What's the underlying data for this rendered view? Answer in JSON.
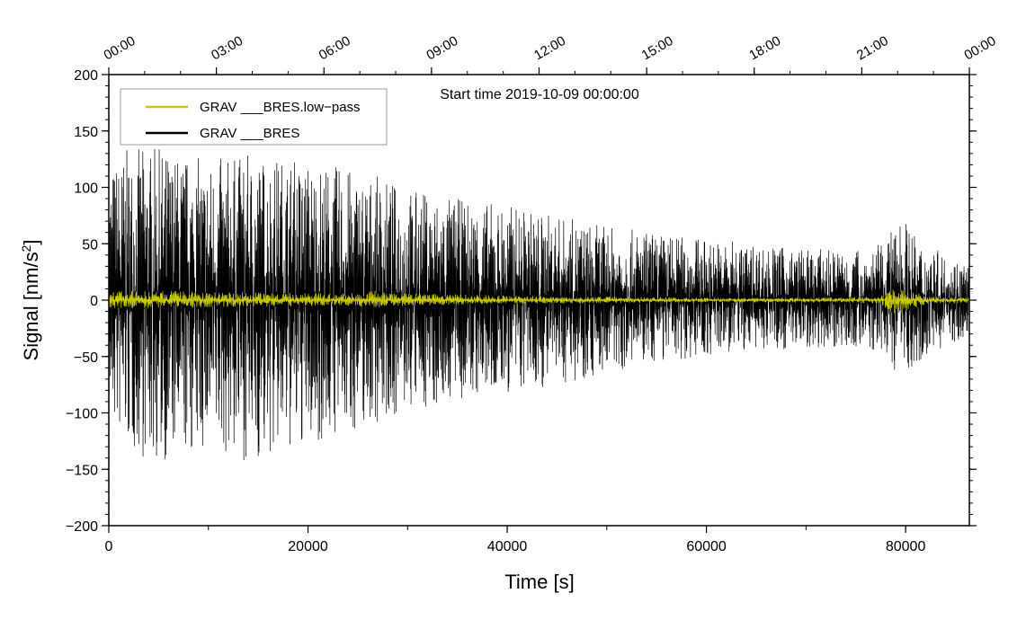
{
  "chart_data": {
    "type": "line",
    "title": "",
    "annotation": "Start time 2019-10-09 00:00:00",
    "xlabel": "Time [s]",
    "ylabel_prefix": "Signal [nm/s",
    "ylabel_sup": "2",
    "ylabel_suffix": "]",
    "xlim": [
      0,
      86400
    ],
    "ylim": [
      -200,
      200
    ],
    "grid": false,
    "legend_position": "top-left",
    "x_ticks": [
      0,
      20000,
      40000,
      60000,
      80000
    ],
    "x_tick_labels": [
      "0",
      "20000",
      "40000",
      "60000",
      "80000"
    ],
    "y_ticks": [
      -200,
      -150,
      -100,
      -50,
      0,
      50,
      100,
      150,
      200
    ],
    "y_tick_labels": [
      "−200",
      "−150",
      "−100",
      "−50",
      "0",
      "50",
      "100",
      "150",
      "200"
    ],
    "top_ticks_seconds": [
      0,
      10800,
      21600,
      32400,
      43200,
      54000,
      64800,
      75600,
      86400
    ],
    "top_tick_labels": [
      "00:00",
      "03:00",
      "06:00",
      "09:00",
      "12:00",
      "15:00",
      "18:00",
      "21:00",
      "00:00"
    ],
    "series": [
      {
        "name": "GRAV ___BRES.low−pass",
        "color": "#c8c800",
        "envelope_x": [
          0,
          5000,
          10000,
          15000,
          20000,
          25000,
          26500,
          28000,
          30000,
          35000,
          40000,
          45000,
          50000,
          55000,
          60000,
          65000,
          70000,
          75000,
          77500,
          78500,
          79500,
          80500,
          82000,
          84000,
          86400
        ],
        "envelope_upper": [
          8,
          8,
          7,
          7,
          6,
          6,
          9,
          6,
          6,
          5,
          4,
          3,
          3,
          2.5,
          2,
          2,
          2,
          2.5,
          3,
          10,
          12,
          8,
          4,
          2.5,
          2
        ],
        "envelope_lower": [
          -7,
          -7,
          -6,
          -6,
          -5,
          -5,
          -8,
          -5,
          -5,
          -4,
          -3,
          -3,
          -2.5,
          -2,
          -2,
          -2,
          -2,
          -2,
          -3,
          -12,
          -15,
          -8,
          -4,
          -3,
          -2
        ]
      },
      {
        "name": "GRAV ___BRES",
        "color": "#000000",
        "envelope_x": [
          0,
          2000,
          5000,
          10000,
          15000,
          20000,
          25000,
          30000,
          35000,
          40000,
          45000,
          50000,
          55000,
          60000,
          65000,
          70000,
          75000,
          78000,
          79500,
          81000,
          84000,
          86400
        ],
        "envelope_upper": [
          120,
          135,
          135,
          125,
          130,
          125,
          115,
          100,
          90,
          85,
          75,
          65,
          60,
          55,
          50,
          45,
          45,
          50,
          80,
          55,
          40,
          35
        ],
        "envelope_lower": [
          -110,
          -135,
          -145,
          -135,
          -145,
          -130,
          -115,
          -100,
          -90,
          -85,
          -75,
          -65,
          -55,
          -50,
          -45,
          -42,
          -42,
          -50,
          -70,
          -55,
          -40,
          -35
        ]
      }
    ]
  }
}
